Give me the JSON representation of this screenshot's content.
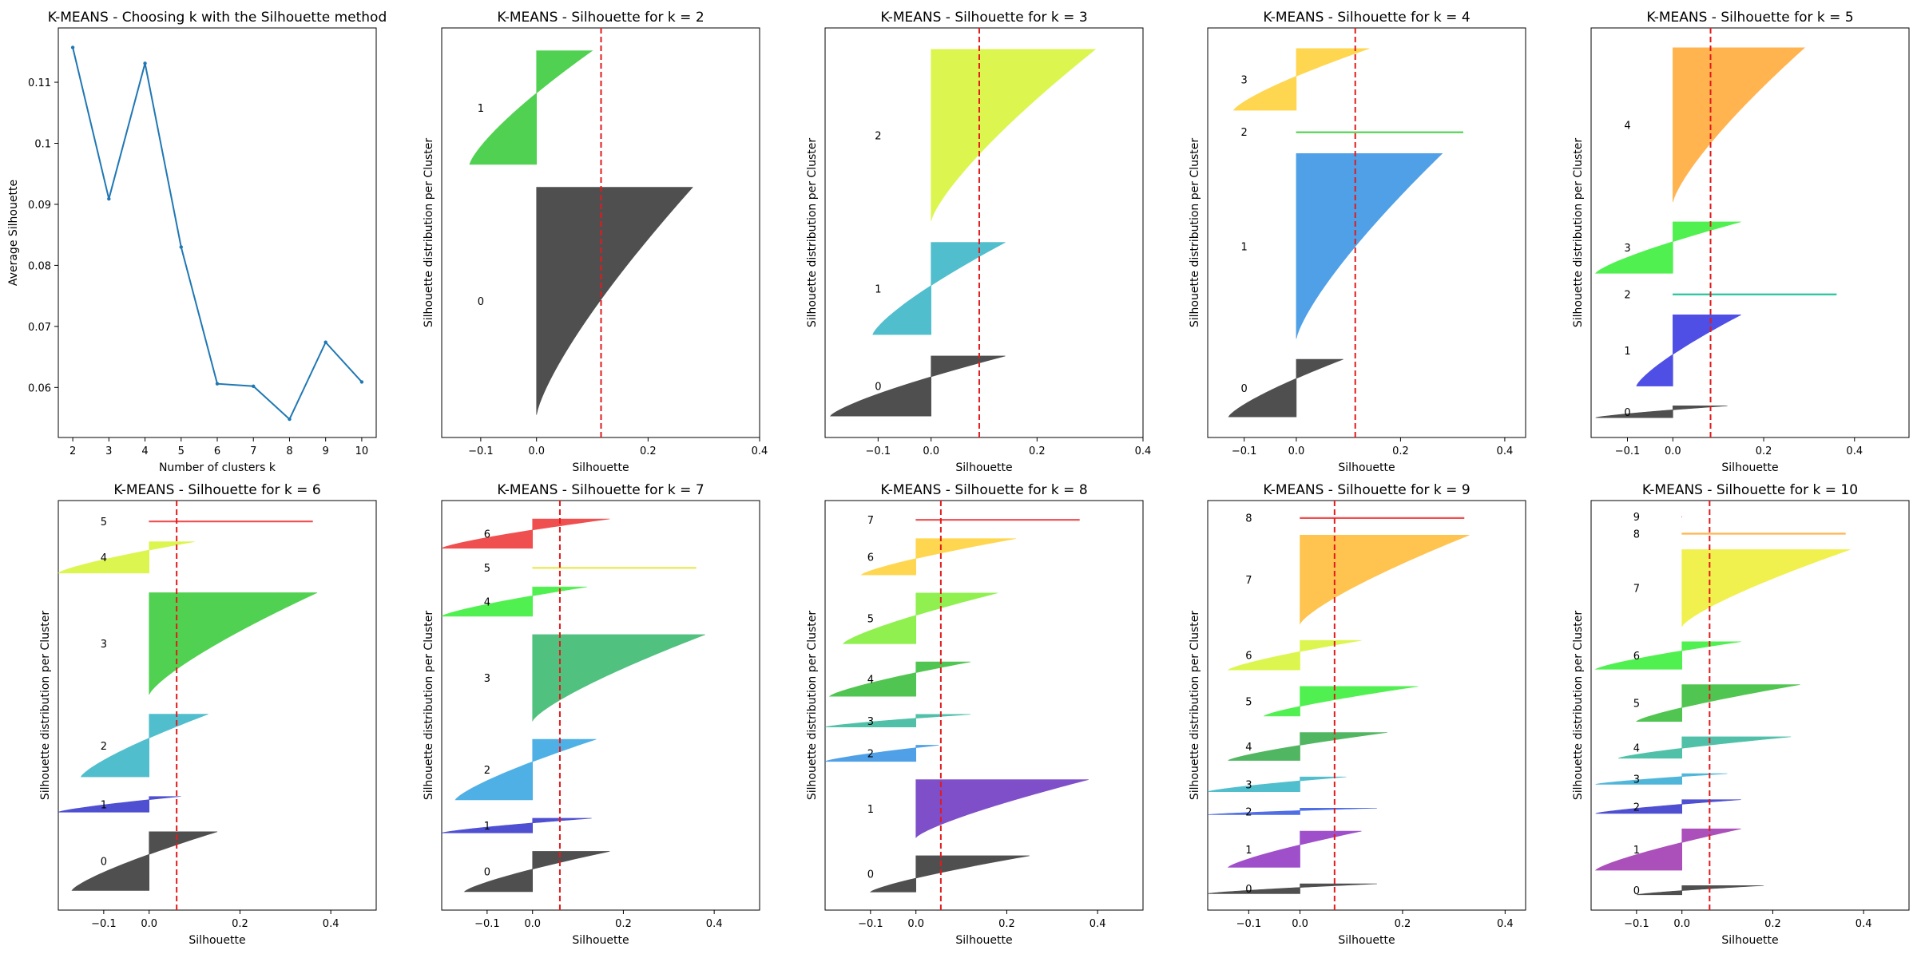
{
  "chart_data": [
    {
      "type": "line",
      "title": "K-MEANS - Choosing k with the Silhouette method",
      "xlabel": "Number of clusters k",
      "ylabel": "Average Silhouette",
      "x": [
        2,
        3,
        4,
        5,
        6,
        7,
        8,
        9,
        10
      ],
      "y": [
        0.1157,
        0.0909,
        0.1131,
        0.083,
        0.0606,
        0.0602,
        0.0548,
        0.0674,
        0.0609
      ],
      "xlim": [
        1.6,
        10.4
      ],
      "ylim": [
        0.0518,
        0.1189
      ],
      "xticks": [
        2,
        3,
        4,
        5,
        6,
        7,
        8,
        9,
        10
      ],
      "yticks": [
        0.06,
        0.07,
        0.08,
        0.09,
        0.1,
        0.11
      ],
      "line_color": "#1f77b4"
    },
    {
      "type": "area",
      "k": 2,
      "title": "K-MEANS - Silhouette for k = 2",
      "xlabel": "Silhouette",
      "ylabel": "Silhouette distribution per Cluster",
      "xlim": [
        -0.17,
        0.4
      ],
      "xticks": [
        -0.1,
        0.0,
        0.2,
        0.4
      ],
      "avg": 0.1157,
      "clusters": [
        {
          "label": "0",
          "size": 100,
          "min": 0.0,
          "max": 0.28,
          "color": "#4a4a4a"
        },
        {
          "label": "1",
          "size": 50,
          "min": -0.12,
          "max": 0.1,
          "color": "#4cd04c"
        }
      ]
    },
    {
      "type": "area",
      "k": 3,
      "title": "K-MEANS - Silhouette for k = 3",
      "xlabel": "Silhouette",
      "ylabel": "Silhouette distribution per Cluster",
      "xlim": [
        -0.2,
        0.4
      ],
      "xticks": [
        -0.1,
        0.0,
        0.2,
        0.4
      ],
      "avg": 0.0909,
      "clusters": [
        {
          "label": "0",
          "size": 28,
          "min": -0.19,
          "max": 0.14,
          "color": "#4a4a4a"
        },
        {
          "label": "1",
          "size": 43,
          "min": -0.11,
          "max": 0.14,
          "color": "#4bbccc"
        },
        {
          "label": "2",
          "size": 80,
          "min": 0.0,
          "max": 0.31,
          "color": "#dcf54a"
        }
      ]
    },
    {
      "type": "area",
      "k": 4,
      "title": "K-MEANS - Silhouette for k = 4",
      "xlabel": "Silhouette",
      "ylabel": "Silhouette distribution per Cluster",
      "xlim": [
        -0.17,
        0.44
      ],
      "xticks": [
        -0.1,
        0.0,
        0.2,
        0.4
      ],
      "avg": 0.1131,
      "clusters": [
        {
          "label": "0",
          "size": 28,
          "min": -0.13,
          "max": 0.09,
          "color": "#4a4a4a"
        },
        {
          "label": "1",
          "size": 90,
          "min": 0.0,
          "max": 0.28,
          "color": "#4a9de6"
        },
        {
          "label": "2",
          "size": 1,
          "min": 0.0,
          "max": 0.32,
          "color": "#4cd04c"
        },
        {
          "label": "3",
          "size": 30,
          "min": -0.12,
          "max": 0.14,
          "color": "#ffd54a"
        }
      ]
    },
    {
      "type": "area",
      "k": 5,
      "title": "K-MEANS - Silhouette for k = 5",
      "xlabel": "Silhouette",
      "ylabel": "Silhouette distribution per Cluster",
      "xlim": [
        -0.18,
        0.52
      ],
      "xticks": [
        -0.1,
        0.0,
        0.2,
        0.4
      ],
      "avg": 0.083,
      "clusters": [
        {
          "label": "0",
          "size": 6,
          "min": -0.17,
          "max": 0.12,
          "color": "#4a4a4a"
        },
        {
          "label": "1",
          "size": 36,
          "min": -0.08,
          "max": 0.15,
          "color": "#4a4ae6"
        },
        {
          "label": "2",
          "size": 1,
          "min": 0.0,
          "max": 0.36,
          "color": "#26c39c"
        },
        {
          "label": "3",
          "size": 26,
          "min": -0.17,
          "max": 0.15,
          "color": "#4cf04c"
        },
        {
          "label": "4",
          "size": 78,
          "min": 0.0,
          "max": 0.29,
          "color": "#ffb24a"
        }
      ]
    },
    {
      "type": "area",
      "k": 6,
      "title": "K-MEANS - Silhouette for k = 6",
      "xlabel": "Silhouette",
      "ylabel": "Silhouette distribution per Cluster",
      "xlim": [
        -0.2,
        0.5
      ],
      "xticks": [
        -0.1,
        0.0,
        0.2,
        0.4
      ],
      "avg": 0.0606,
      "clusters": [
        {
          "label": "0",
          "size": 30,
          "min": -0.17,
          "max": 0.15,
          "color": "#4a4a4a"
        },
        {
          "label": "1",
          "size": 8,
          "min": -0.2,
          "max": 0.07,
          "color": "#4a4ad0"
        },
        {
          "label": "2",
          "size": 32,
          "min": -0.15,
          "max": 0.13,
          "color": "#4bbccc"
        },
        {
          "label": "3",
          "size": 52,
          "min": 0.0,
          "max": 0.37,
          "color": "#4cd04c"
        },
        {
          "label": "4",
          "size": 16,
          "min": -0.2,
          "max": 0.1,
          "color": "#dcf54a"
        },
        {
          "label": "5",
          "size": 1,
          "min": 0.0,
          "max": 0.36,
          "color": "#f04a4a"
        }
      ]
    },
    {
      "type": "area",
      "k": 7,
      "title": "K-MEANS - Silhouette for k = 7",
      "xlabel": "Silhouette",
      "ylabel": "Silhouette distribution per Cluster",
      "xlim": [
        -0.2,
        0.5
      ],
      "xticks": [
        -0.1,
        0.0,
        0.2,
        0.4
      ],
      "avg": 0.0602,
      "clusters": [
        {
          "label": "0",
          "size": 22,
          "min": -0.15,
          "max": 0.17,
          "color": "#4a4a4a"
        },
        {
          "label": "1",
          "size": 8,
          "min": -0.2,
          "max": 0.13,
          "color": "#4a4ad0"
        },
        {
          "label": "2",
          "size": 33,
          "min": -0.17,
          "max": 0.14,
          "color": "#4aaee6"
        },
        {
          "label": "3",
          "size": 47,
          "min": 0.0,
          "max": 0.38,
          "color": "#4bbf7a"
        },
        {
          "label": "4",
          "size": 16,
          "min": -0.2,
          "max": 0.12,
          "color": "#4cf04c"
        },
        {
          "label": "5",
          "size": 1,
          "min": 0.0,
          "max": 0.36,
          "color": "#e8e84a"
        },
        {
          "label": "6",
          "size": 16,
          "min": -0.2,
          "max": 0.17,
          "color": "#f04a4a"
        }
      ]
    },
    {
      "type": "area",
      "k": 8,
      "title": "K-MEANS - Silhouette for k = 8",
      "xlabel": "Silhouette",
      "ylabel": "Silhouette distribution per Cluster",
      "xlim": [
        -0.2,
        0.5
      ],
      "xticks": [
        -0.1,
        0.0,
        0.2,
        0.4
      ],
      "avg": 0.0548,
      "clusters": [
        {
          "label": "0",
          "size": 20,
          "min": -0.1,
          "max": 0.25,
          "color": "#4a4a4a"
        },
        {
          "label": "1",
          "size": 32,
          "min": 0.0,
          "max": 0.38,
          "color": "#7b4ac8"
        },
        {
          "label": "2",
          "size": 9,
          "min": -0.2,
          "max": 0.05,
          "color": "#4a9de6"
        },
        {
          "label": "3",
          "size": 7,
          "min": -0.2,
          "max": 0.12,
          "color": "#4bbfa6"
        },
        {
          "label": "4",
          "size": 19,
          "min": -0.19,
          "max": 0.12,
          "color": "#4cc44c"
        },
        {
          "label": "5",
          "size": 28,
          "min": -0.16,
          "max": 0.18,
          "color": "#8cf04a"
        },
        {
          "label": "6",
          "size": 20,
          "min": -0.12,
          "max": 0.22,
          "color": "#ffd54a"
        },
        {
          "label": "7",
          "size": 1,
          "min": 0.0,
          "max": 0.36,
          "color": "#f04a4a"
        }
      ]
    },
    {
      "type": "area",
      "k": 9,
      "title": "K-MEANS - Silhouette for k = 9",
      "xlabel": "Silhouette",
      "ylabel": "Silhouette distribution per Cluster",
      "xlim": [
        -0.18,
        0.44
      ],
      "xticks": [
        -0.1,
        0.0,
        0.2,
        0.4
      ],
      "avg": 0.0674,
      "clusters": [
        {
          "label": "0",
          "size": 6,
          "min": -0.18,
          "max": 0.15,
          "color": "#4a4a4a"
        },
        {
          "label": "1",
          "size": 22,
          "min": -0.14,
          "max": 0.12,
          "color": "#9b4ac8"
        },
        {
          "label": "2",
          "size": 4,
          "min": -0.18,
          "max": 0.15,
          "color": "#4a6ae6"
        },
        {
          "label": "3",
          "size": 9,
          "min": -0.18,
          "max": 0.09,
          "color": "#4bbccc"
        },
        {
          "label": "4",
          "size": 17,
          "min": -0.14,
          "max": 0.17,
          "color": "#4cb45c"
        },
        {
          "label": "5",
          "size": 18,
          "min": -0.07,
          "max": 0.23,
          "color": "#4cf04c"
        },
        {
          "label": "6",
          "size": 18,
          "min": -0.14,
          "max": 0.12,
          "color": "#dcf54a"
        },
        {
          "label": "7",
          "size": 54,
          "min": 0.0,
          "max": 0.33,
          "color": "#ffc24a"
        },
        {
          "label": "8",
          "size": 1,
          "min": 0.0,
          "max": 0.32,
          "color": "#f04a4a"
        }
      ]
    },
    {
      "type": "area",
      "k": 10,
      "title": "K-MEANS - Silhouette for k = 10",
      "xlabel": "Silhouette",
      "ylabel": "Silhouette distribution per Cluster",
      "xlim": [
        -0.2,
        0.5
      ],
      "xticks": [
        -0.1,
        0.0,
        0.2,
        0.4
      ],
      "avg": 0.0609,
      "clusters": [
        {
          "label": "0",
          "size": 6,
          "min": -0.1,
          "max": 0.18,
          "color": "#4a4a4a"
        },
        {
          "label": "1",
          "size": 27,
          "min": -0.19,
          "max": 0.13,
          "color": "#a94ab8"
        },
        {
          "label": "2",
          "size": 9,
          "min": -0.19,
          "max": 0.13,
          "color": "#4a4ad0"
        },
        {
          "label": "3",
          "size": 7,
          "min": -0.19,
          "max": 0.1,
          "color": "#4ab4d8"
        },
        {
          "label": "4",
          "size": 14,
          "min": -0.14,
          "max": 0.24,
          "color": "#4bbfa6"
        },
        {
          "label": "5",
          "size": 24,
          "min": -0.1,
          "max": 0.26,
          "color": "#4cc44c"
        },
        {
          "label": "6",
          "size": 18,
          "min": -0.19,
          "max": 0.13,
          "color": "#4cf04c"
        },
        {
          "label": "7",
          "size": 50,
          "min": 0.0,
          "max": 0.37,
          "color": "#f0f04a"
        },
        {
          "label": "8",
          "size": 1,
          "min": 0.0,
          "max": 0.36,
          "color": "#ffb24a"
        },
        {
          "label": "9",
          "size": 1,
          "min": 0.0,
          "max": 0.0,
          "color": "#f04a4a"
        }
      ]
    }
  ]
}
